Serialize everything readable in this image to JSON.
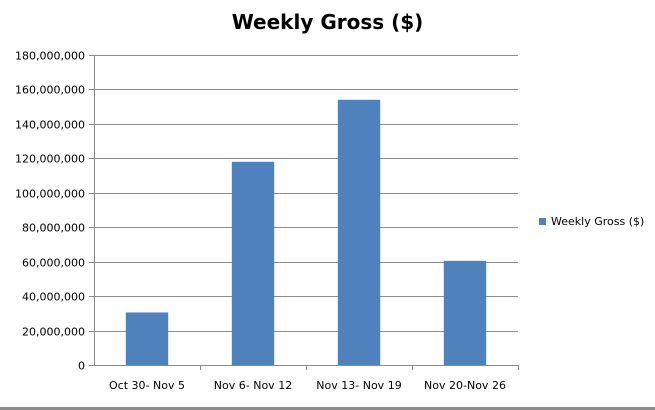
{
  "chart_data": {
    "type": "bar",
    "title": "Weekly Gross ($)",
    "categories": [
      "Oct 30- Nov 5",
      "Nov 6- Nov 12",
      "Nov 13- Nov 19",
      "Nov 20-Nov 26"
    ],
    "series": [
      {
        "name": "Weekly Gross ($)",
        "values": [
          30500000,
          118000000,
          154000000,
          60500000
        ],
        "color": "#4f81bd"
      }
    ],
    "ylim": [
      0,
      180000000
    ],
    "yticks": [
      "0",
      "20,000,000",
      "40,000,000",
      "60,000,000",
      "80,000,000",
      "100,000,000",
      "120,000,000",
      "140,000,000",
      "160,000,000",
      "180,000,000"
    ],
    "ytick_values": [
      0,
      20000000,
      40000000,
      60000000,
      80000000,
      100000000,
      120000000,
      140000000,
      160000000,
      180000000
    ],
    "grid": true,
    "legend_position": "right"
  }
}
